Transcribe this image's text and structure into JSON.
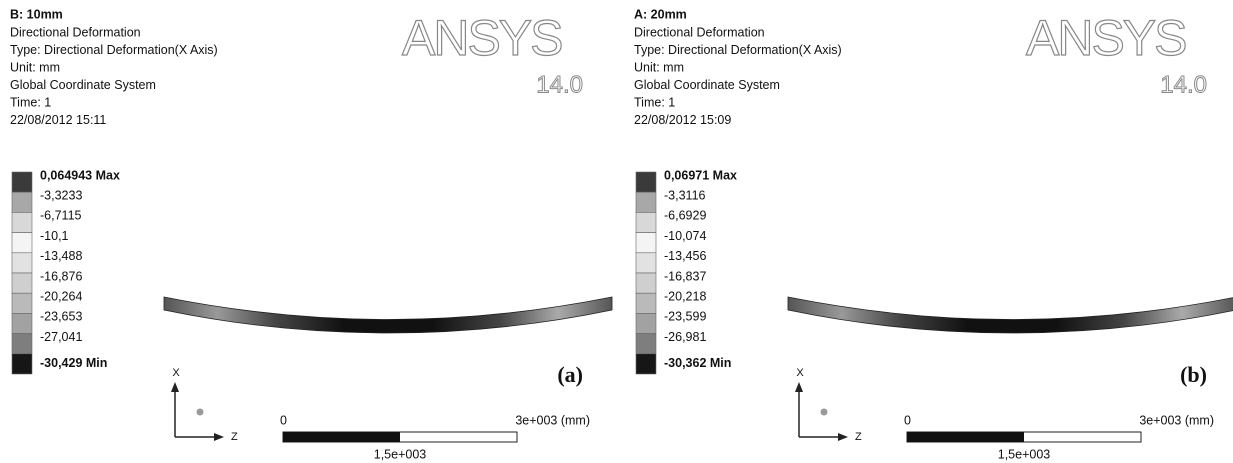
{
  "panels": [
    {
      "header": {
        "title": "B: 10mm",
        "lines": [
          "Directional Deformation",
          "Type: Directional Deformation(X Axis)",
          "Unit: mm",
          "Global Coordinate System",
          "Time: 1",
          "22/08/2012 15:11"
        ]
      },
      "legend": [
        "0,064943 Max",
        "-3,3233",
        "-6,7115",
        "-10,1",
        "-13,488",
        "-16,876",
        "-20,264",
        "-23,653",
        "-27,041",
        "-30,429 Min"
      ],
      "logo": {
        "name": "ANSYS",
        "version": "14.0"
      },
      "scale": {
        "start": "0",
        "end": "3e+003 (mm)",
        "mid": "1,5e+003"
      },
      "axes": {
        "x": "X",
        "z": "Z"
      },
      "caption": "(a)"
    },
    {
      "header": {
        "title": "A: 20mm",
        "lines": [
          "Directional Deformation",
          "Type: Directional Deformation(X Axis)",
          "Unit: mm",
          "Global Coordinate System",
          "Time: 1",
          "22/08/2012 15:09"
        ]
      },
      "legend": [
        "0,06971 Max",
        "-3,3116",
        "-6,6929",
        "-10,074",
        "-13,456",
        "-16,837",
        "-20,218",
        "-23,599",
        "-26,981",
        "-30,362 Min"
      ],
      "logo": {
        "name": "ANSYS",
        "version": "14.0"
      },
      "scale": {
        "start": "0",
        "end": "3e+003 (mm)",
        "mid": "1,5e+003"
      },
      "axes": {
        "x": "X",
        "z": "Z"
      },
      "caption": "(b)"
    }
  ]
}
